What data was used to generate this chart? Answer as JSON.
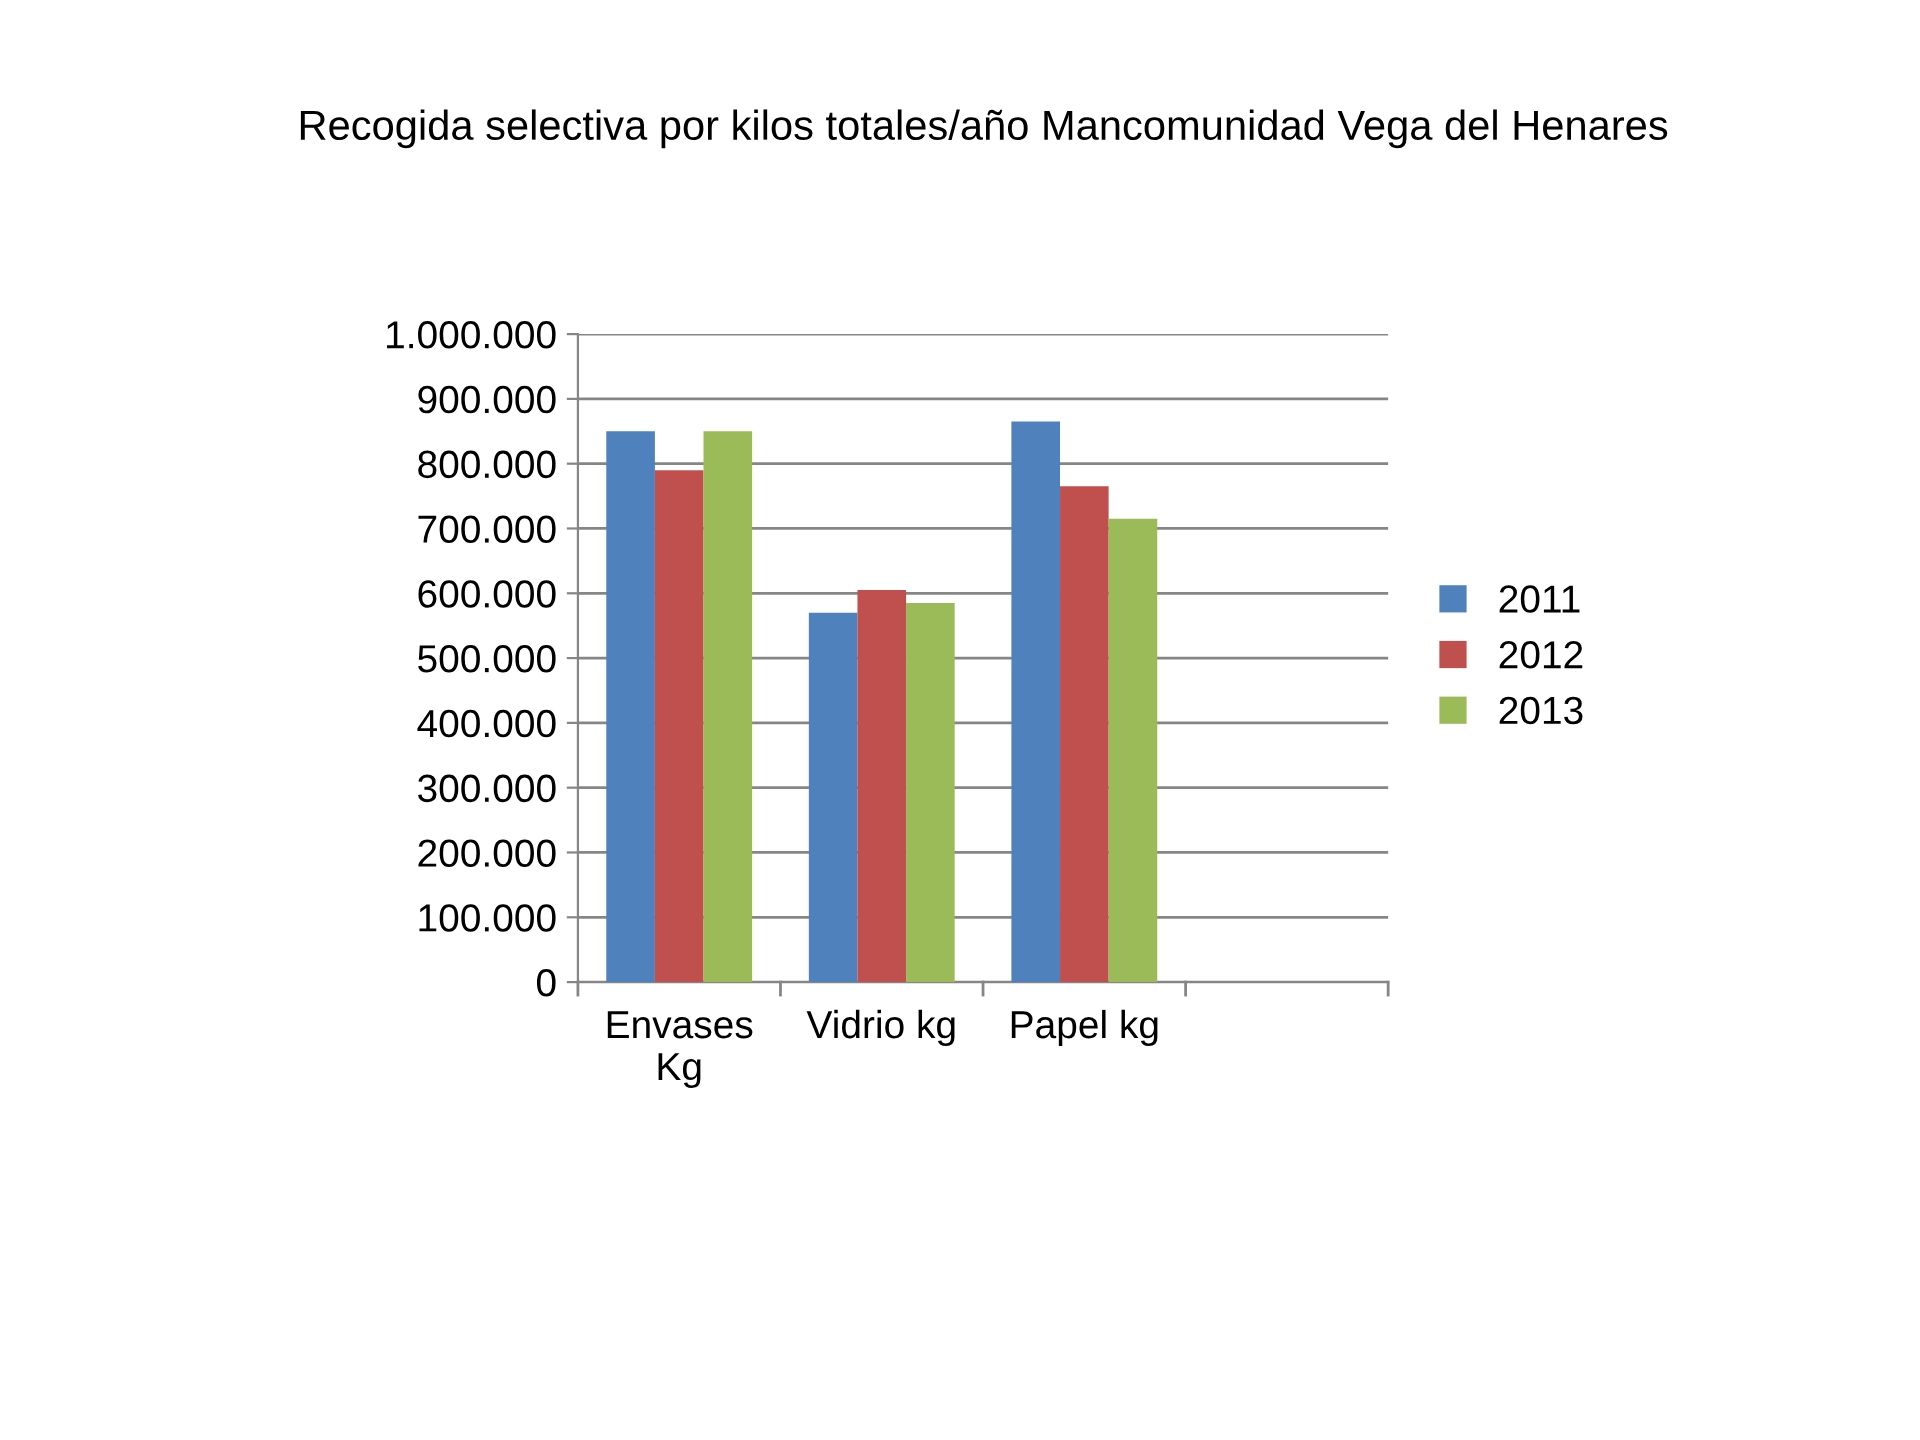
{
  "chart_data": {
    "type": "bar",
    "title": "Recogida selectiva por kilos totales/año Mancomunidad Vega del Henares",
    "categories": [
      "Envases\nKg",
      "Vidrio kg",
      "Papel kg",
      null
    ],
    "series": [
      {
        "name": "2011",
        "color": "#4f81bd",
        "values": [
          850000,
          570000,
          865000,
          null
        ]
      },
      {
        "name": "2012",
        "color": "#c0504d",
        "values": [
          790000,
          605000,
          765000,
          null
        ]
      },
      {
        "name": "2013",
        "color": "#9bbb59",
        "values": [
          850000,
          585000,
          715000,
          null
        ]
      }
    ],
    "ylim": [
      0,
      1000000
    ],
    "yticks": [
      0,
      {
        "value": 100000,
        "label": "100.000"
      },
      {
        "value": 200000,
        "label": "200.000"
      },
      {
        "value": 300000,
        "label": "300.000"
      },
      {
        "value": 400000,
        "label": "400.000"
      },
      {
        "value": 500000,
        "label": "500.000"
      },
      {
        "value": 600000,
        "label": "600.000"
      },
      {
        "value": 700000,
        "label": "700.000"
      },
      {
        "value": 800000,
        "label": "800.000"
      },
      {
        "value": 900000,
        "label": "900.000"
      },
      {
        "value": 1000000,
        "label": "1.000.000"
      }
    ],
    "grid": "y",
    "legend": "right"
  }
}
